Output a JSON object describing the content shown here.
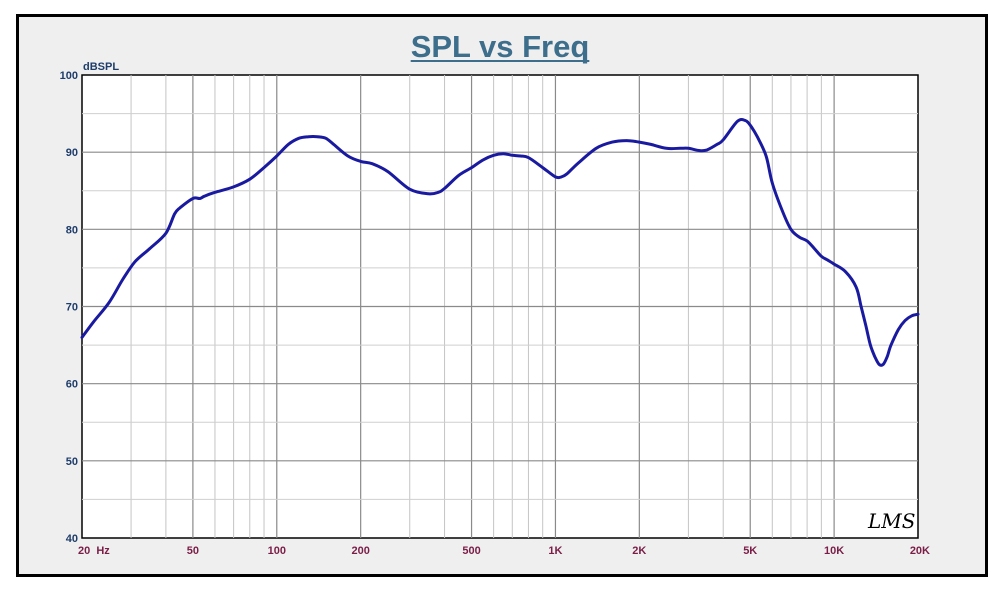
{
  "chart_data": {
    "type": "line",
    "title": "SPL vs Freq",
    "ylabel": "dBSPL",
    "xlabel": "",
    "xscale": "log",
    "xlim": [
      20,
      20000
    ],
    "ylim": [
      40,
      100
    ],
    "y_ticks": [
      40,
      50,
      60,
      70,
      80,
      90,
      100
    ],
    "x_ticks": [
      {
        "value": 20,
        "label": "20  Hz"
      },
      {
        "value": 50,
        "label": "50"
      },
      {
        "value": 100,
        "label": "100"
      },
      {
        "value": 200,
        "label": "200"
      },
      {
        "value": 500,
        "label": "500"
      },
      {
        "value": 1000,
        "label": "1K"
      },
      {
        "value": 2000,
        "label": "2K"
      },
      {
        "value": 5000,
        "label": "5K"
      },
      {
        "value": 10000,
        "label": "10K"
      },
      {
        "value": 20000,
        "label": "20K"
      }
    ],
    "grid": true,
    "watermark": "LMS",
    "colors": {
      "line": "#1a1aa0",
      "title": "#3d6e8c",
      "y_ticks": "#1e3d6a",
      "x_ticks": "#7a1e48",
      "grid": "#808080",
      "plot_bg": "#ffffff",
      "frame_bg": "#efefef"
    },
    "series": [
      {
        "name": "SPL",
        "x": [
          20,
          22,
          25,
          28,
          31,
          35,
          40,
          43,
          45,
          50,
          53,
          55,
          60,
          70,
          80,
          90,
          100,
          110,
          120,
          130,
          140,
          150,
          160,
          180,
          200,
          220,
          250,
          300,
          350,
          380,
          400,
          450,
          500,
          550,
          600,
          650,
          700,
          750,
          800,
          900,
          1000,
          1050,
          1100,
          1200,
          1400,
          1600,
          1800,
          2000,
          2200,
          2500,
          2800,
          3000,
          3300,
          3500,
          3800,
          4000,
          4500,
          4800,
          5000,
          5300,
          5700,
          6000,
          6500,
          7000,
          7500,
          8000,
          8500,
          9000,
          9500,
          10000,
          11000,
          12000,
          12500,
          13000,
          13500,
          14000,
          14500,
          15000,
          15500,
          16000,
          17000,
          18000,
          19000,
          20000
        ],
        "values": [
          66,
          68,
          70.5,
          73.5,
          75.8,
          77.5,
          79.5,
          82,
          82.8,
          84,
          84,
          84.3,
          84.8,
          85.5,
          86.5,
          88,
          89.5,
          91,
          91.8,
          92,
          92,
          91.8,
          91,
          89.5,
          88.8,
          88.5,
          87.5,
          85.2,
          84.6,
          84.8,
          85.3,
          87,
          88,
          89,
          89.6,
          89.8,
          89.6,
          89.5,
          89.3,
          88,
          86.8,
          86.8,
          87.2,
          88.5,
          90.5,
          91.3,
          91.5,
          91.3,
          91,
          90.5,
          90.5,
          90.5,
          90.2,
          90.3,
          91,
          91.6,
          94,
          94.1,
          93.5,
          92,
          89.5,
          86,
          82.5,
          80,
          79,
          78.5,
          77.5,
          76.5,
          76,
          75.5,
          74.5,
          72.5,
          70,
          67.5,
          65,
          63.5,
          62.5,
          62.5,
          63.5,
          65,
          67,
          68.2,
          68.8,
          69
        ]
      }
    ]
  }
}
